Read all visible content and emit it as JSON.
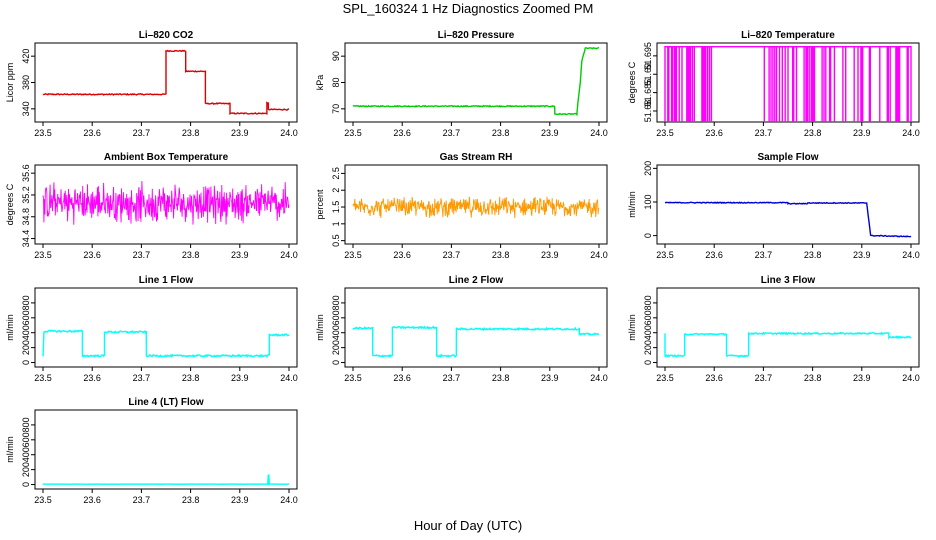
{
  "figure": {
    "title": "SPL_160324  1 Hz Diagnostics Zoomed PM",
    "xlabel": "Hour of Day (UTC)"
  },
  "chart_data": [
    {
      "type": "line",
      "title": "Li–820 CO2",
      "ylabel": "Licor ppm",
      "color": "#dd0000",
      "xlim": [
        23.5,
        24.0
      ],
      "ylim": [
        320,
        440
      ],
      "yticks": [
        340,
        380,
        420
      ],
      "noise": 0.8,
      "series": [
        {
          "x": [
            23.5,
            23.75,
            23.7501,
            23.79,
            23.7901,
            23.83,
            23.8301,
            23.88,
            23.8801,
            23.955,
            23.9551,
            23.958,
            23.9581,
            24.0
          ],
          "y": [
            362,
            362,
            428,
            428,
            397,
            397,
            348,
            348,
            333,
            333,
            349,
            349,
            339,
            339
          ]
        }
      ]
    },
    {
      "type": "line",
      "title": "Li–820 Pressure",
      "ylabel": "kPa",
      "color": "#00cc00",
      "xlim": [
        23.5,
        24.0
      ],
      "ylim": [
        65,
        95
      ],
      "yticks": [
        70,
        80,
        90
      ],
      "noise": 0.2,
      "series": [
        {
          "x": [
            23.5,
            23.91,
            23.9101,
            23.955,
            23.957,
            23.962,
            23.965,
            23.972,
            24.0
          ],
          "y": [
            71,
            71,
            68,
            68,
            72,
            80,
            88,
            93,
            93
          ]
        }
      ]
    },
    {
      "type": "line",
      "title": "Li–820 Temperature",
      "ylabel": "degrees C",
      "color": "#ff00ff",
      "xlim": [
        23.5,
        24.0
      ],
      "ylim": [
        51.677,
        51.6985
      ],
      "yticks": [
        51.68,
        51.685,
        51.69,
        51.695
      ],
      "noise": 0,
      "style": "flicker",
      "base": 51.6975,
      "low": 51.677,
      "series": [
        {
          "name": "",
          "x": [
            23.5,
            24.0
          ],
          "y": [
            51.6975,
            51.6975
          ]
        }
      ]
    },
    {
      "type": "line",
      "title": "Ambient Box Temperature",
      "ylabel": "degrees C",
      "color": "#ff00ff",
      "xlim": [
        23.5,
        24.0
      ],
      "ylim": [
        34.3,
        35.75
      ],
      "yticks": [
        34.4,
        34.8,
        35.2,
        35.6
      ],
      "noise": 0.3,
      "style": "dense",
      "center": 35.05,
      "series": [
        {
          "x": [
            23.5,
            24.0
          ],
          "y": [
            35.05,
            35.05
          ]
        }
      ]
    },
    {
      "type": "line",
      "title": "Gas Stream RH",
      "ylabel": "percent",
      "color": "#ff9900",
      "xlim": [
        23.5,
        24.0
      ],
      "ylim": [
        0.4,
        2.75
      ],
      "yticks": [
        0.5,
        1.0,
        1.5,
        2.0,
        2.5
      ],
      "noise": 0.25,
      "style": "dense",
      "center": 1.5,
      "series": [
        {
          "x": [
            23.5,
            24.0
          ],
          "y": [
            1.5,
            1.5
          ]
        }
      ]
    },
    {
      "type": "line",
      "title": "Sample Flow",
      "ylabel": "ml/min",
      "color": "#0000cc",
      "xlim": [
        23.5,
        24.0
      ],
      "ylim": [
        -25,
        210
      ],
      "yticks": [
        0,
        100,
        200
      ],
      "noise": 1.2,
      "series": [
        {
          "x": [
            23.5,
            23.75,
            23.7501,
            23.79,
            23.7901,
            23.91,
            23.918,
            24.0
          ],
          "y": [
            98,
            98,
            95,
            95,
            97,
            97,
            0,
            -3
          ]
        }
      ]
    },
    {
      "type": "line",
      "title": "Line 1 Flow",
      "ylabel": "ml/min",
      "color": "#00ffff",
      "xlim": [
        23.5,
        24.0
      ],
      "ylim": [
        -60,
        1000
      ],
      "yticks": [
        0,
        200,
        400,
        600,
        800
      ],
      "noise": 12,
      "series": [
        {
          "x": [
            23.5,
            23.502,
            23.58,
            23.5801,
            23.625,
            23.6251,
            23.71,
            23.7101,
            23.96,
            23.9601,
            24.0
          ],
          "y": [
            90,
            420,
            420,
            90,
            90,
            410,
            410,
            90,
            90,
            370,
            370
          ]
        }
      ]
    },
    {
      "type": "line",
      "title": "Line 2 Flow",
      "ylabel": "ml/min",
      "color": "#00ffff",
      "xlim": [
        23.5,
        24.0
      ],
      "ylim": [
        -60,
        1000
      ],
      "yticks": [
        0,
        200,
        400,
        600,
        800
      ],
      "noise": 12,
      "series": [
        {
          "x": [
            23.5,
            23.54,
            23.5401,
            23.58,
            23.5801,
            23.67,
            23.6701,
            23.71,
            23.7101,
            23.96,
            23.9601,
            24.0
          ],
          "y": [
            460,
            460,
            90,
            90,
            470,
            470,
            90,
            90,
            450,
            450,
            380,
            380
          ]
        }
      ]
    },
    {
      "type": "line",
      "title": "Line 3 Flow",
      "ylabel": "ml/min",
      "color": "#00ffff",
      "xlim": [
        23.5,
        24.0
      ],
      "ylim": [
        -60,
        1000
      ],
      "yticks": [
        0,
        200,
        400,
        600,
        800
      ],
      "noise": 10,
      "series": [
        {
          "x": [
            23.5,
            23.5001,
            23.54,
            23.5401,
            23.625,
            23.6251,
            23.67,
            23.6701,
            23.955,
            23.9551,
            24.0
          ],
          "y": [
            400,
            90,
            90,
            380,
            380,
            90,
            90,
            390,
            390,
            340,
            340
          ]
        }
      ]
    },
    {
      "type": "line",
      "title": "Line 4 (LT) Flow",
      "ylabel": "ml/min",
      "color": "#00ffff",
      "xlim": [
        23.5,
        24.0
      ],
      "ylim": [
        -60,
        1000
      ],
      "yticks": [
        0,
        200,
        400,
        600,
        800
      ],
      "noise": 1,
      "series": [
        {
          "x": [
            23.5,
            23.957,
            23.958,
            23.959,
            23.96,
            24.0
          ],
          "y": [
            5,
            5,
            130,
            130,
            5,
            5
          ]
        }
      ]
    }
  ],
  "xticks": [
    23.5,
    23.6,
    23.7,
    23.8,
    23.9,
    24.0
  ]
}
